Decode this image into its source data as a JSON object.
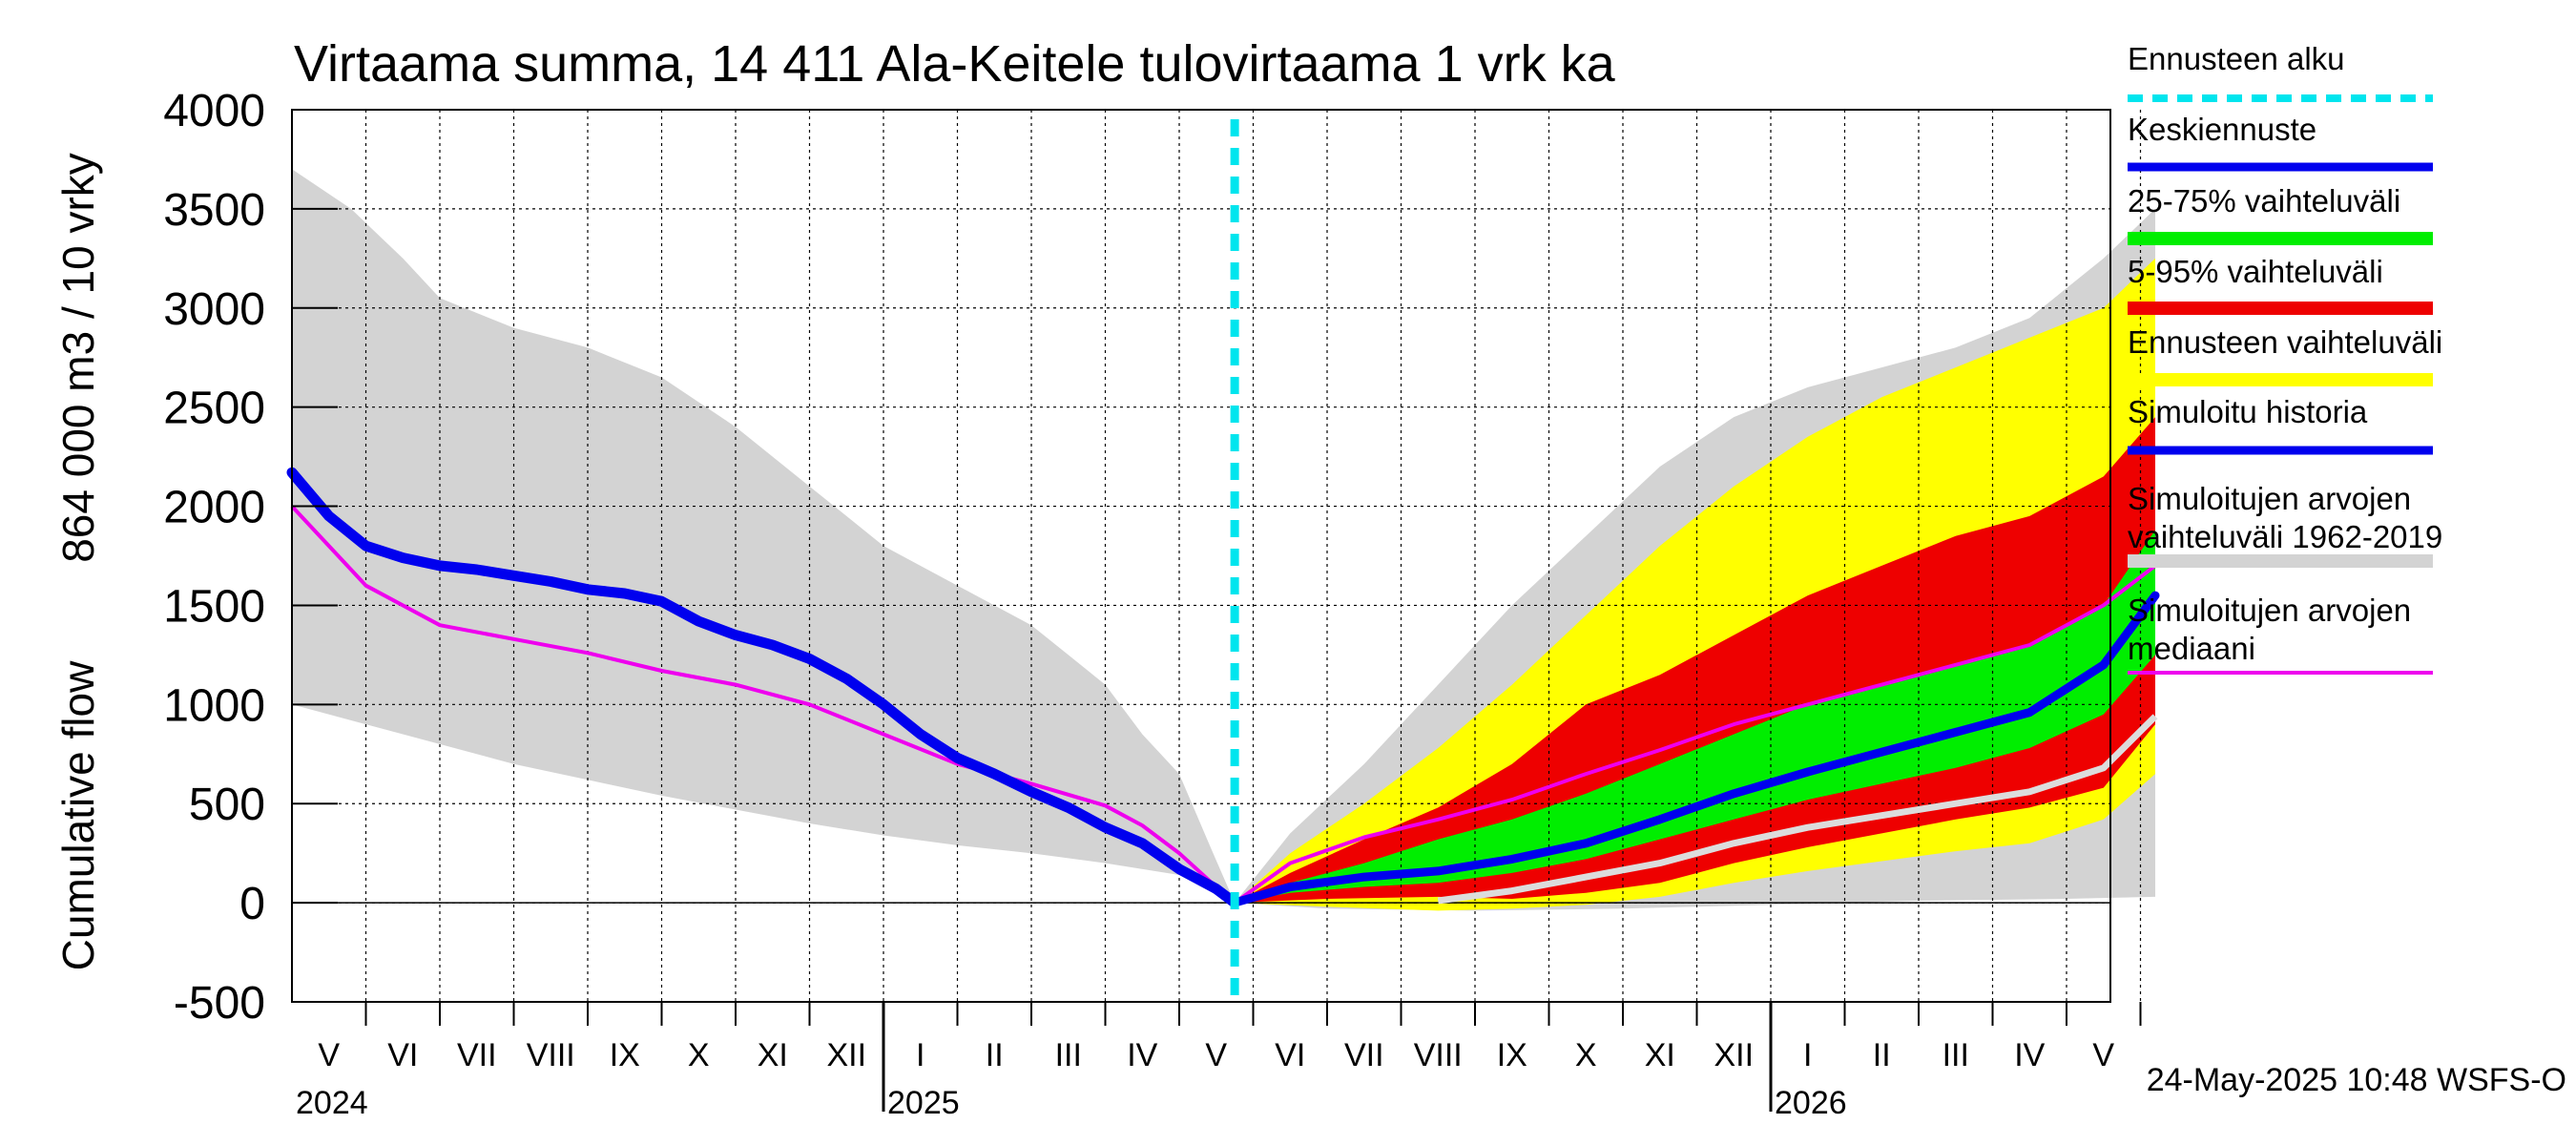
{
  "chart_data": {
    "type": "area",
    "title": "Virtaama summa, 14 411 Ala-Keitele tulovirtaama 1 vrk ka",
    "ylabel_line1": "Cumulative flow",
    "ylabel_line2": "864 000 m3 / 10 vrky",
    "ylim": [
      -500,
      4000
    ],
    "yticks": [
      4000,
      3500,
      3000,
      2500,
      2000,
      1500,
      1000,
      500,
      0,
      -500
    ],
    "grid": true,
    "x_range_months": [
      0,
      25.2
    ],
    "forecast_start_month": 12.75,
    "month_labels": [
      "V",
      "VI",
      "VII",
      "VIII",
      "IX",
      "X",
      "XI",
      "XII",
      "I",
      "II",
      "III",
      "IV",
      "V",
      "VI",
      "VII",
      "VIII",
      "IX",
      "X",
      "XI",
      "XII",
      "I",
      "II",
      "III",
      "IV",
      "V"
    ],
    "year_labels": [
      {
        "label": "2024",
        "month": 0
      },
      {
        "label": "2025",
        "month": 8
      },
      {
        "label": "2026",
        "month": 20
      }
    ],
    "timestamp": "24-May-2025 10:48 WSFS-O",
    "legend_position": "right",
    "legend": [
      {
        "label": "Ennusteen alku",
        "color": "#00e5ee",
        "style": "dashed"
      },
      {
        "label": "Keskiennuste",
        "color": "#0000ee",
        "style": "line"
      },
      {
        "label": "25-75% vaihteluväli",
        "color": "#00ee00",
        "style": "band"
      },
      {
        "label": "5-95% vaihteluväli",
        "color": "#ee0000",
        "style": "band"
      },
      {
        "label": "Ennusteen vaihteluväli",
        "color": "#ffff00",
        "style": "band"
      },
      {
        "label": "Simuloitu historia",
        "color": "#0000ee",
        "style": "line"
      },
      {
        "label": "Simuloitujen arvojen\nvaihteluväli 1962-2019",
        "color": "#d3d3d3",
        "style": "band"
      },
      {
        "label": "Simuloitujen arvojen\nmediaani",
        "color": "#ee00ee",
        "style": "line"
      }
    ],
    "series": [
      {
        "key": "hist_range_upper",
        "color": "#d3d3d3",
        "x": [
          0,
          0.8,
          1.5,
          2,
          3,
          4,
          5,
          6,
          7,
          7.5,
          8,
          9,
          10,
          10.5,
          11,
          11.5,
          12,
          12.4,
          12.75
        ],
        "y": [
          3700,
          3500,
          3250,
          3050,
          2900,
          2800,
          2650,
          2400,
          2100,
          1950,
          1800,
          1600,
          1400,
          1250,
          1100,
          850,
          650,
          300,
          0
        ]
      },
      {
        "key": "hist_range_lower",
        "color": "#d3d3d3",
        "x": [
          0,
          1,
          2,
          3,
          4,
          5,
          6,
          7,
          8,
          9,
          10,
          11,
          12,
          12.5,
          12.75
        ],
        "y": [
          1000,
          900,
          800,
          700,
          620,
          540,
          470,
          400,
          340,
          290,
          250,
          200,
          140,
          40,
          0
        ]
      },
      {
        "key": "fut_range_upper",
        "color": "#d3d3d3",
        "x": [
          12.75,
          13.5,
          14.5,
          15.5,
          16.5,
          17.5,
          18.5,
          19.5,
          20.5,
          21.5,
          22.5,
          23.5,
          24.5,
          25.2
        ],
        "y": [
          0,
          350,
          700,
          1100,
          1500,
          1850,
          2200,
          2450,
          2600,
          2700,
          2800,
          2950,
          3250,
          3500
        ]
      },
      {
        "key": "fut_range_lower",
        "color": "#d3d3d3",
        "x": [
          12.75,
          14,
          16,
          18,
          20,
          22,
          24,
          25.2
        ],
        "y": [
          0,
          -30,
          -40,
          -30,
          -10,
          10,
          20,
          30
        ]
      },
      {
        "name": "Ennusteen vaihteluväli",
        "key": "forecast_upper",
        "color": "#ffff00",
        "x": [
          12.75,
          13.5,
          14.5,
          15.5,
          16.5,
          17.5,
          18.5,
          19.5,
          20.5,
          21.5,
          22.5,
          23.5,
          24.5,
          25.2
        ],
        "y": [
          0,
          250,
          500,
          780,
          1100,
          1450,
          1800,
          2100,
          2350,
          2550,
          2700,
          2850,
          3000,
          3250
        ]
      },
      {
        "key": "forecast_lower",
        "color": "#ffff00",
        "x": [
          12.75,
          14,
          15.5,
          16.5,
          17.5,
          18.5,
          19.5,
          20.5,
          21.5,
          22.5,
          23.5,
          24.5,
          25.2
        ],
        "y": [
          0,
          -20,
          -40,
          -30,
          -10,
          30,
          100,
          160,
          210,
          260,
          300,
          420,
          650
        ]
      },
      {
        "name": "5-95% vaihteluväli",
        "key": "p95",
        "color": "#ee0000",
        "x": [
          12.75,
          13.5,
          14.5,
          15.5,
          16.5,
          17.5,
          18.5,
          19.5,
          20.5,
          21.5,
          22.5,
          23.5,
          24.5,
          25.2
        ],
        "y": [
          0,
          150,
          320,
          480,
          700,
          1000,
          1150,
          1350,
          1550,
          1700,
          1850,
          1950,
          2150,
          2450
        ]
      },
      {
        "key": "p5",
        "color": "#ee0000",
        "x": [
          12.75,
          14,
          15.5,
          16.5,
          17.5,
          18.5,
          19.5,
          20.5,
          21.5,
          22.5,
          23.5,
          24.5,
          25.2
        ],
        "y": [
          0,
          20,
          30,
          20,
          50,
          100,
          200,
          280,
          350,
          420,
          480,
          580,
          900
        ]
      },
      {
        "name": "25-75% vaihteluväli",
        "key": "p75",
        "color": "#00ee00",
        "x": [
          12.75,
          13.5,
          14.5,
          15.5,
          16.5,
          17.5,
          18.5,
          19.5,
          20.5,
          21.5,
          22.5,
          23.5,
          24.5,
          25.2
        ],
        "y": [
          0,
          100,
          200,
          320,
          420,
          550,
          700,
          850,
          1000,
          1100,
          1200,
          1300,
          1500,
          1880
        ]
      },
      {
        "key": "p25",
        "color": "#00ee00",
        "x": [
          12.75,
          13.5,
          14.5,
          15.5,
          16.5,
          17.5,
          18.5,
          19.5,
          20.5,
          21.5,
          22.5,
          23.5,
          24.5,
          25.2
        ],
        "y": [
          0,
          50,
          80,
          100,
          150,
          220,
          320,
          420,
          520,
          600,
          680,
          780,
          950,
          1250
        ]
      },
      {
        "name": "Simuloitu historia",
        "key": "sim_history",
        "color": "#0000ee",
        "x": [
          0,
          0.5,
          1,
          1.5,
          2,
          2.5,
          3,
          3.5,
          4,
          4.5,
          5,
          5.5,
          6,
          6.5,
          7,
          7.5,
          8,
          8.5,
          9,
          9.5,
          10,
          10.5,
          11,
          11.5,
          12,
          12.5,
          12.75
        ],
        "y": [
          2170,
          1950,
          1800,
          1740,
          1700,
          1680,
          1650,
          1620,
          1580,
          1560,
          1520,
          1420,
          1350,
          1300,
          1230,
          1130,
          1000,
          850,
          730,
          650,
          560,
          480,
          380,
          300,
          170,
          70,
          0
        ]
      },
      {
        "name": "Keskiennuste",
        "key": "mean_forecast",
        "color": "#0000ee",
        "x": [
          12.75,
          13.5,
          14.5,
          15.5,
          16.5,
          17.5,
          18.5,
          19.5,
          20.5,
          21.5,
          22.5,
          23.5,
          24.5,
          25.2
        ],
        "y": [
          0,
          80,
          130,
          160,
          220,
          300,
          420,
          550,
          660,
          760,
          860,
          960,
          1200,
          1550
        ]
      },
      {
        "name": "Simuloitujen arvojen mediaani",
        "key": "sim_median",
        "color": "#ee00ee",
        "x": [
          0,
          1,
          2,
          3,
          4,
          5,
          6,
          7,
          8,
          9,
          10,
          11,
          11.5,
          12,
          12.5,
          12.75,
          13.5,
          14.5,
          15.5,
          16.5,
          17.5,
          18.5,
          19.5,
          20.5,
          21.5,
          22.5,
          23.5,
          24.5,
          25.2
        ],
        "y": [
          2000,
          1600,
          1400,
          1330,
          1260,
          1170,
          1100,
          1000,
          850,
          700,
          600,
          490,
          390,
          250,
          80,
          0,
          200,
          330,
          420,
          520,
          650,
          770,
          900,
          1000,
          1100,
          1200,
          1300,
          1500,
          1700
        ]
      },
      {
        "name": "mean historical (grey line)",
        "key": "grey_line",
        "color": "#d8d8d8",
        "x": [
          15.5,
          16.5,
          17.5,
          18.5,
          19.5,
          20.5,
          21.5,
          22.5,
          23.5,
          24.5,
          25.2
        ],
        "y": [
          10,
          60,
          130,
          200,
          300,
          380,
          440,
          500,
          560,
          680,
          940
        ]
      }
    ]
  }
}
